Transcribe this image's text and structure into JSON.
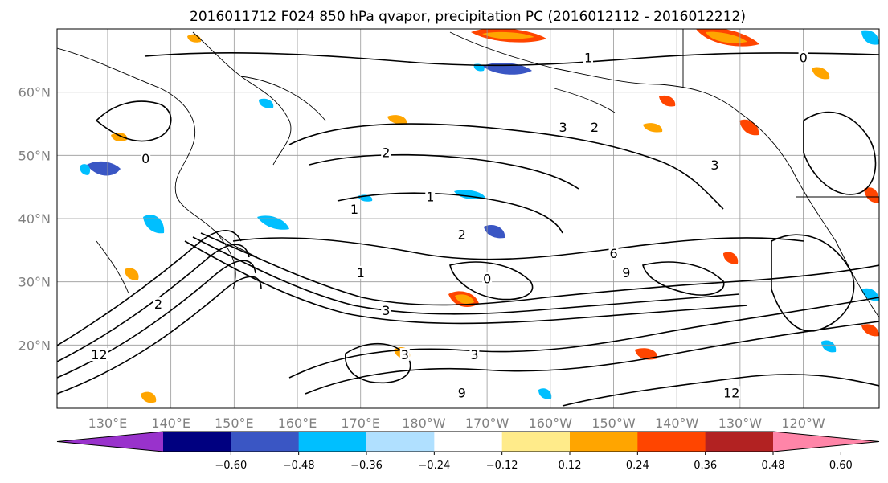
{
  "title": "2016011712 F024 850 hPa qvapor, precipitation PC (2016012112 - 2016012212)",
  "map": {
    "lat_ticks": [
      {
        "value": 60,
        "label": "60°N"
      },
      {
        "value": 50,
        "label": "50°N"
      },
      {
        "value": 40,
        "label": "40°N"
      },
      {
        "value": 30,
        "label": "30°N"
      },
      {
        "value": 20,
        "label": "20°N"
      }
    ],
    "lon_ticks": [
      {
        "value": 130,
        "label": "130°E"
      },
      {
        "value": 140,
        "label": "140°E"
      },
      {
        "value": 150,
        "label": "150°E"
      },
      {
        "value": 160,
        "label": "160°E"
      },
      {
        "value": 170,
        "label": "170°E"
      },
      {
        "value": 180,
        "label": "180°W"
      },
      {
        "value": 190,
        "label": "170°W"
      },
      {
        "value": 200,
        "label": "160°W"
      },
      {
        "value": 210,
        "label": "150°W"
      },
      {
        "value": 220,
        "label": "140°W"
      },
      {
        "value": 230,
        "label": "130°W"
      },
      {
        "value": 240,
        "label": "120°W"
      }
    ],
    "lon_range": [
      122,
      252
    ],
    "lat_range": [
      10,
      70
    ],
    "contour_labels": [
      {
        "text": "1",
        "lon": 206,
        "lat": 65
      },
      {
        "text": "0",
        "lon": 240,
        "lat": 65
      },
      {
        "text": "3",
        "lon": 202,
        "lat": 54
      },
      {
        "text": "2",
        "lon": 207,
        "lat": 54
      },
      {
        "text": "2",
        "lon": 174,
        "lat": 50
      },
      {
        "text": "1",
        "lon": 181,
        "lat": 43
      },
      {
        "text": "1",
        "lon": 169,
        "lat": 41
      },
      {
        "text": "2",
        "lon": 186,
        "lat": 37
      },
      {
        "text": "6",
        "lon": 210,
        "lat": 34
      },
      {
        "text": "9",
        "lon": 212,
        "lat": 31
      },
      {
        "text": "0",
        "lon": 190,
        "lat": 30
      },
      {
        "text": "3",
        "lon": 174,
        "lat": 25
      },
      {
        "text": "3",
        "lon": 177,
        "lat": 18
      },
      {
        "text": "3",
        "lon": 188,
        "lat": 18
      },
      {
        "text": "12",
        "lon": 228,
        "lat": 12
      },
      {
        "text": "9",
        "lon": 186,
        "lat": 12
      },
      {
        "text": "2",
        "lon": 138,
        "lat": 26
      },
      {
        "text": "12",
        "lon": 128,
        "lat": 18
      },
      {
        "text": "0",
        "lon": 136,
        "lat": 49
      },
      {
        "text": "3",
        "lon": 226,
        "lat": 48
      },
      {
        "text": "1",
        "lon": 170,
        "lat": 31
      }
    ],
    "colors": {
      "contour": "#000000",
      "grid": "#999999",
      "coast": "#000000"
    }
  },
  "colorbar": {
    "colors": [
      "#9932CC",
      "#000080",
      "#3A56C4",
      "#00BFFF",
      "#B0E0FF",
      "#FFFFFF",
      "#FFEB8A",
      "#FFA500",
      "#FF4500",
      "#B22222",
      "#FF85A8"
    ],
    "ticks": [
      "−0.60",
      "−0.48",
      "−0.36",
      "−0.24",
      "−0.12",
      "0.12",
      "0.24",
      "0.36",
      "0.48",
      "0.60"
    ]
  }
}
